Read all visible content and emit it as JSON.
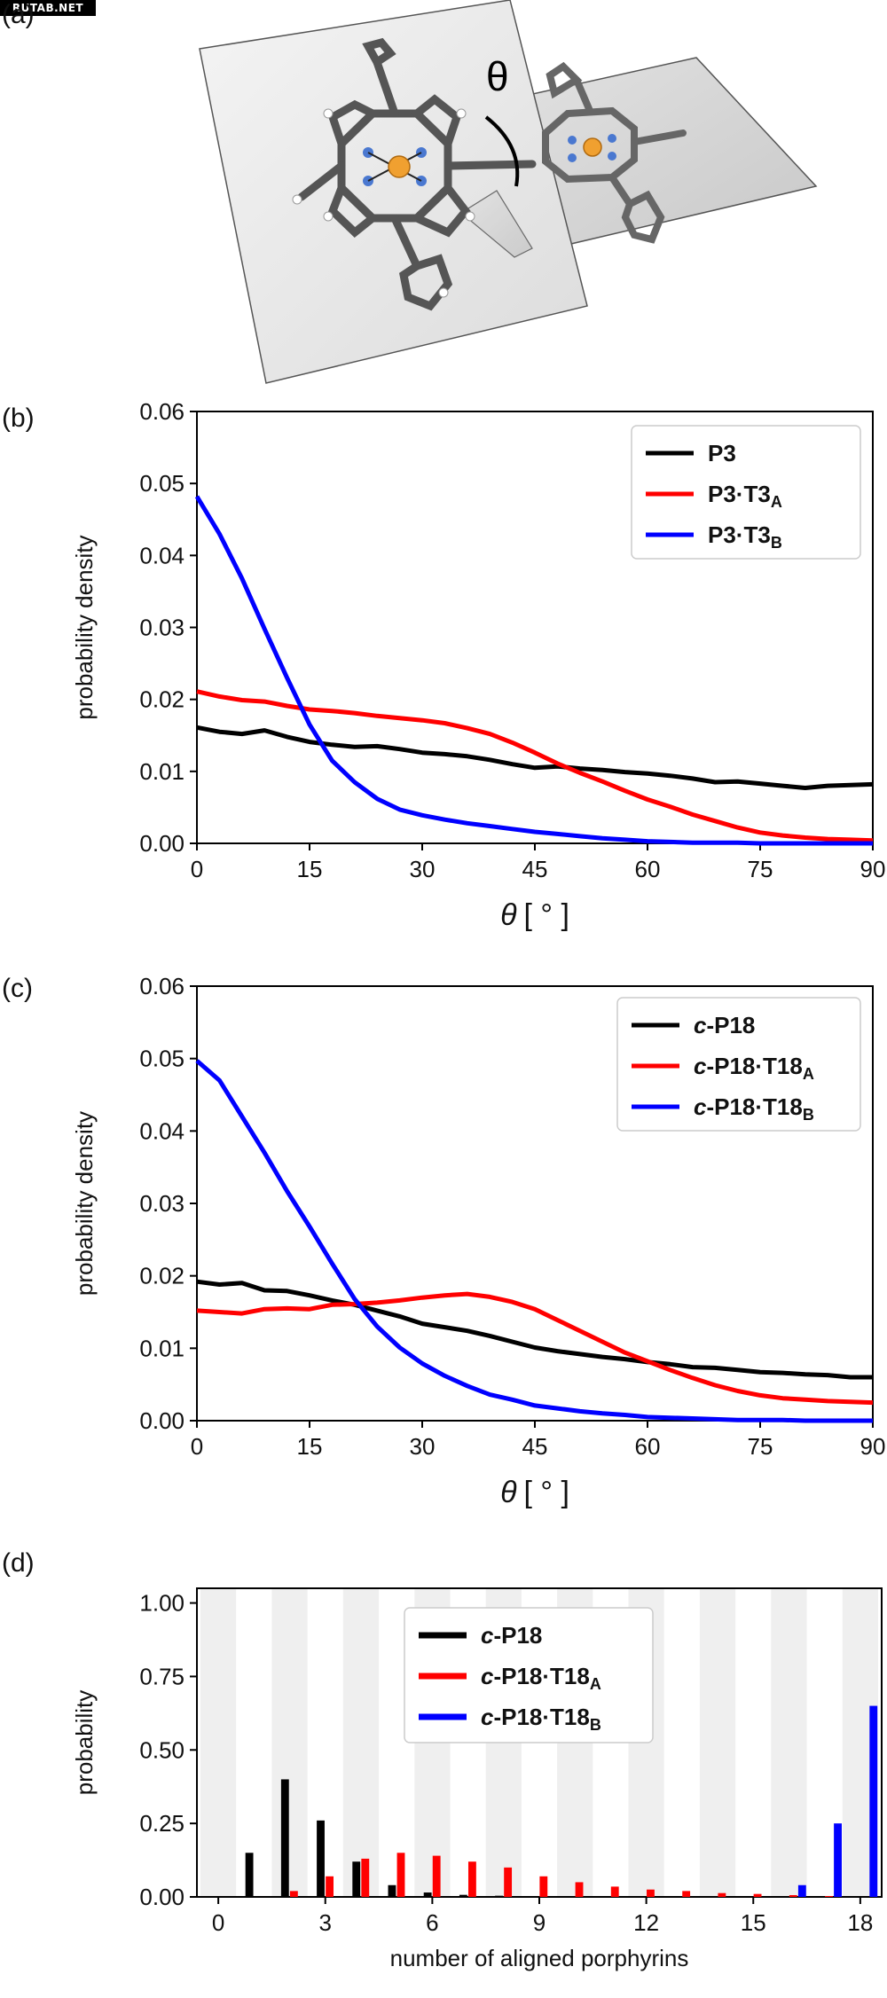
{
  "watermark": "RUTAB.NET",
  "panels": {
    "a": {
      "label": "(a)",
      "angle_symbol": "θ"
    },
    "b": {
      "label": "(b)"
    },
    "c": {
      "label": "(c)"
    },
    "d": {
      "label": "(d)"
    }
  },
  "colors": {
    "black": "#000000",
    "red": "#ff0000",
    "blue": "#0000ff",
    "stripe": "#efefef"
  },
  "chart_data": [
    {
      "id": "b",
      "type": "line",
      "xlabel_symbol": "θ",
      "xlabel_unit": "[ ° ]",
      "ylabel": "probability density",
      "xlim": [
        0,
        90
      ],
      "ylim": [
        0,
        0.06
      ],
      "xticks": [
        "0",
        "15",
        "30",
        "45",
        "60",
        "75",
        "90"
      ],
      "yticks": [
        "0.00",
        "0.01",
        "0.02",
        "0.03",
        "0.04",
        "0.05",
        "0.06"
      ],
      "legend_position": "top-right",
      "x": [
        0,
        3,
        6,
        9,
        12,
        15,
        18,
        21,
        24,
        27,
        30,
        33,
        36,
        39,
        42,
        45,
        48,
        51,
        54,
        57,
        60,
        63,
        66,
        69,
        72,
        75,
        78,
        81,
        84,
        87,
        90
      ],
      "series": [
        {
          "name": "P3",
          "name_main": "P3",
          "name_sub": "",
          "color": "#000000",
          "values": [
            0.0161,
            0.0155,
            0.0152,
            0.0157,
            0.0148,
            0.0141,
            0.0137,
            0.0134,
            0.0135,
            0.0131,
            0.0126,
            0.0124,
            0.0121,
            0.0116,
            0.011,
            0.0105,
            0.0107,
            0.0104,
            0.0102,
            0.0099,
            0.0097,
            0.0094,
            0.009,
            0.0085,
            0.0086,
            0.0083,
            0.008,
            0.0077,
            0.008,
            0.0081,
            0.0082
          ]
        },
        {
          "name": "P3·T3A",
          "name_main": "P3·T3",
          "name_sub": "A",
          "color": "#ff0000",
          "values": [
            0.0211,
            0.0204,
            0.0199,
            0.0197,
            0.0191,
            0.0186,
            0.0184,
            0.0181,
            0.0177,
            0.0174,
            0.0171,
            0.0167,
            0.016,
            0.0152,
            0.014,
            0.0126,
            0.0111,
            0.0098,
            0.0086,
            0.0073,
            0.0061,
            0.0051,
            0.004,
            0.0031,
            0.0022,
            0.0015,
            0.0011,
            0.0008,
            0.0006,
            0.0005,
            0.0004
          ]
        },
        {
          "name": "P3·T3B",
          "name_main": "P3·T3",
          "name_sub": "B",
          "color": "#0000ff",
          "values": [
            0.0482,
            0.043,
            0.0368,
            0.0298,
            0.023,
            0.0165,
            0.0115,
            0.0085,
            0.0062,
            0.0047,
            0.0039,
            0.0033,
            0.0028,
            0.0024,
            0.002,
            0.0016,
            0.0013,
            0.001,
            0.0007,
            0.0005,
            0.0003,
            0.0002,
            0.0001,
            0.0001,
            0.0001,
            0.0,
            0.0,
            0.0,
            0.0,
            0.0,
            0.0
          ]
        }
      ]
    },
    {
      "id": "c",
      "type": "line",
      "xlabel_symbol": "θ",
      "xlabel_unit": "[ ° ]",
      "ylabel": "probability density",
      "xlim": [
        0,
        90
      ],
      "ylim": [
        0,
        0.06
      ],
      "xticks": [
        "0",
        "15",
        "30",
        "45",
        "60",
        "75",
        "90"
      ],
      "yticks": [
        "0.00",
        "0.01",
        "0.02",
        "0.03",
        "0.04",
        "0.05",
        "0.06"
      ],
      "legend_position": "top-right",
      "x": [
        0,
        3,
        6,
        9,
        12,
        15,
        18,
        21,
        24,
        27,
        30,
        33,
        36,
        39,
        42,
        45,
        48,
        51,
        54,
        57,
        60,
        63,
        66,
        69,
        72,
        75,
        78,
        81,
        84,
        87,
        90
      ],
      "series": [
        {
          "name": "c-P18",
          "name_main": "c-P18",
          "name_sub": "",
          "color": "#000000",
          "values": [
            0.0192,
            0.0188,
            0.019,
            0.018,
            0.0179,
            0.0173,
            0.0166,
            0.016,
            0.0152,
            0.0144,
            0.0134,
            0.0129,
            0.0124,
            0.0117,
            0.0109,
            0.0101,
            0.0096,
            0.0092,
            0.0088,
            0.0085,
            0.0081,
            0.0078,
            0.0074,
            0.0073,
            0.007,
            0.0067,
            0.0066,
            0.0064,
            0.0063,
            0.006,
            0.006
          ]
        },
        {
          "name": "c-P18·T18A",
          "name_main": "c-P18·T18",
          "name_sub": "A",
          "color": "#ff0000",
          "values": [
            0.0152,
            0.015,
            0.0148,
            0.0154,
            0.0155,
            0.0154,
            0.016,
            0.0161,
            0.0163,
            0.0166,
            0.017,
            0.0173,
            0.0175,
            0.0171,
            0.0164,
            0.0154,
            0.0139,
            0.0124,
            0.0109,
            0.0094,
            0.0082,
            0.007,
            0.0059,
            0.0049,
            0.0041,
            0.0035,
            0.0031,
            0.0029,
            0.0027,
            0.0026,
            0.0025
          ]
        },
        {
          "name": "c-P18·T18B",
          "name_main": "c-P18·T18",
          "name_sub": "B",
          "color": "#0000ff",
          "values": [
            0.0497,
            0.047,
            0.042,
            0.037,
            0.0317,
            0.0268,
            0.0217,
            0.0168,
            0.013,
            0.0101,
            0.0079,
            0.0062,
            0.0048,
            0.0036,
            0.0029,
            0.0021,
            0.0017,
            0.0013,
            0.001,
            0.0008,
            0.0005,
            0.0004,
            0.0003,
            0.0002,
            0.0001,
            0.0001,
            0.0001,
            0.0,
            0.0,
            0.0,
            0.0
          ]
        }
      ]
    },
    {
      "id": "d",
      "type": "bar",
      "xlabel": "number of aligned porphyrins",
      "ylabel": "probability",
      "xlim": [
        -0.6,
        18.6
      ],
      "ylim": [
        0,
        1.05
      ],
      "xticks": [
        "0",
        "3",
        "6",
        "9",
        "12",
        "15",
        "18"
      ],
      "yticks": [
        "0.00",
        "0.25",
        "0.50",
        "0.75",
        "1.00"
      ],
      "legend_position": "top-center",
      "categories": [
        "0",
        "1",
        "2",
        "3",
        "4",
        "5",
        "6",
        "7",
        "8",
        "9",
        "10",
        "11",
        "12",
        "13",
        "14",
        "15",
        "16",
        "17",
        "18"
      ],
      "series": [
        {
          "name": "c-P18",
          "name_main": "c-P18",
          "name_sub": "",
          "color": "#000000",
          "values": [
            0.0,
            0.15,
            0.4,
            0.26,
            0.12,
            0.04,
            0.015,
            0.007,
            0.004,
            0.003,
            0.002,
            0.002,
            0.001,
            0.001,
            0.001,
            0.001,
            0.001,
            0.001,
            0.0
          ]
        },
        {
          "name": "c-P18·T18A",
          "name_main": "c-P18·T18",
          "name_sub": "A",
          "color": "#ff0000",
          "values": [
            0.0,
            0.0,
            0.02,
            0.07,
            0.13,
            0.15,
            0.14,
            0.12,
            0.1,
            0.07,
            0.05,
            0.035,
            0.025,
            0.02,
            0.013,
            0.01,
            0.006,
            0.003,
            0.0
          ]
        },
        {
          "name": "c-P18·T18B",
          "name_main": "c-P18·T18",
          "name_sub": "B",
          "color": "#0000ff",
          "values": [
            0.0,
            0.0,
            0.0,
            0.0,
            0.0,
            0.0,
            0.0,
            0.0,
            0.0,
            0.0,
            0.0,
            0.0,
            0.0,
            0.0,
            0.0,
            0.0,
            0.04,
            0.25,
            0.65
          ]
        }
      ]
    }
  ]
}
